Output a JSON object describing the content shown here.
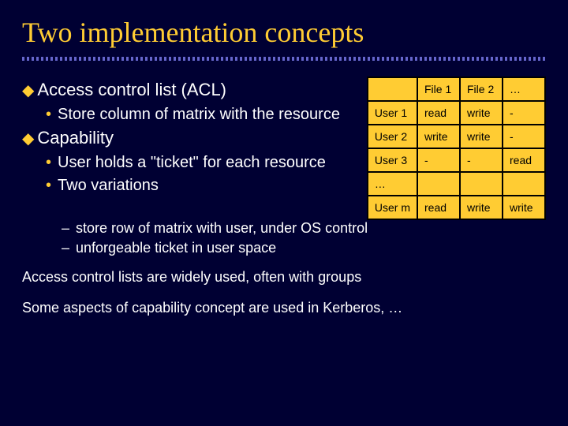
{
  "title": "Two implementation concepts",
  "heading1": {
    "label": "Access control list (ACL)",
    "sub1": "Store column of matrix with the resource"
  },
  "heading2": {
    "label": "Capability",
    "sub1": "User holds a \"ticket\" for each resource",
    "sub2": "Two variations",
    "subsub1": "store row of matrix with user, under OS control",
    "subsub2": "unforgeable ticket in user space"
  },
  "footer1": "Access control lists are widely used, often with groups",
  "footer2": "Some aspects of capability concept are used in Kerberos, …",
  "table": {
    "columns": [
      "",
      "File 1",
      "File 2",
      "…"
    ],
    "rows": [
      [
        "User 1",
        "read",
        "write",
        "-"
      ],
      [
        "User 2",
        "write",
        "write",
        "-"
      ],
      [
        "User 3",
        "-",
        "-",
        "read"
      ],
      [
        "…",
        "",
        "",
        ""
      ],
      [
        "User m",
        "read",
        "write",
        "write"
      ]
    ],
    "background_color": "#ffcc33",
    "border_color": "#000000",
    "text_color": "#000000",
    "cell_fontsize": 14
  },
  "colors": {
    "slide_bg": "#000033",
    "title_color": "#ffcc33",
    "bullet_color": "#ffcc33",
    "text_color": "#ffffff"
  }
}
